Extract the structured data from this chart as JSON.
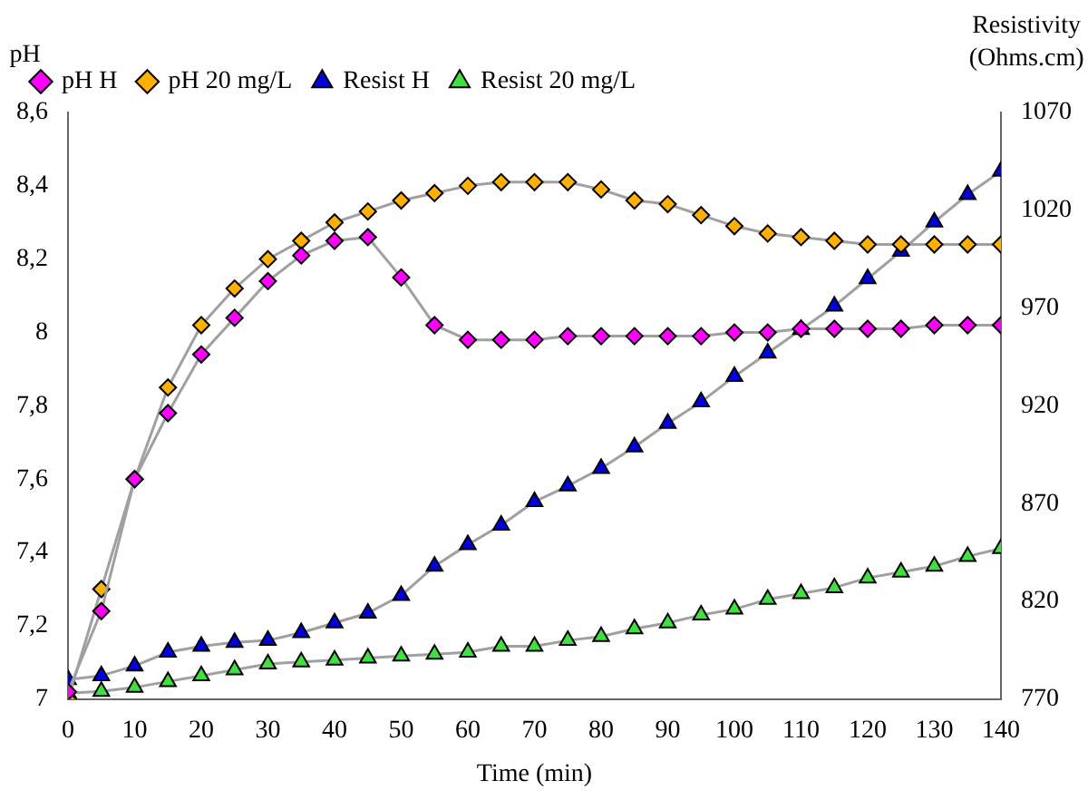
{
  "chart_data": {
    "type": "line",
    "xlabel": "Time (min)",
    "ylabel": "pH",
    "y2label": "Resistivity (Ohms.cm)",
    "x": [
      0,
      5,
      10,
      15,
      20,
      25,
      30,
      35,
      40,
      45,
      50,
      55,
      60,
      65,
      70,
      75,
      80,
      85,
      90,
      95,
      100,
      105,
      110,
      115,
      120,
      125,
      130,
      135,
      140
    ],
    "xlim": [
      0,
      140
    ],
    "xticks": [
      0,
      10,
      20,
      30,
      40,
      50,
      60,
      70,
      80,
      90,
      100,
      110,
      120,
      130,
      140
    ],
    "ylim": [
      7,
      8.6
    ],
    "yticks": [
      7,
      {
        "value": 7.2,
        "label": "7,2"
      },
      {
        "value": 7.4,
        "label": "7,4"
      },
      {
        "value": 7.6,
        "label": "7,6"
      },
      {
        "value": 7.8,
        "label": "7,8"
      },
      8,
      {
        "value": 8.2,
        "label": "8,2"
      },
      {
        "value": 8.4,
        "label": "8,4"
      },
      {
        "value": 8.6,
        "label": "8,6"
      }
    ],
    "y2lim": [
      770,
      1070
    ],
    "y2ticks": [
      770,
      820,
      870,
      920,
      970,
      1020,
      1070
    ],
    "grid": false,
    "legend": "top left",
    "series": [
      {
        "name": "pH H",
        "color": "#ff00ff",
        "marker": "diamond",
        "values": [
          7.02,
          7.24,
          7.6,
          7.78,
          7.94,
          8.04,
          8.14,
          8.21,
          8.25,
          8.26,
          8.15,
          8.02,
          7.98,
          7.98,
          7.98,
          7.99,
          7.99,
          7.99,
          7.99,
          7.99,
          8.0,
          8.0,
          8.01,
          8.01,
          8.01,
          8.01,
          8.02,
          8.02,
          8.02
        ]
      },
      {
        "name": "pH 20 mg/L",
        "color": "#ffb000",
        "marker": "diamond",
        "values": [
          7.0,
          7.3,
          7.6,
          7.85,
          8.02,
          8.12,
          8.2,
          8.25,
          8.3,
          8.33,
          8.36,
          8.38,
          8.4,
          8.41,
          8.41,
          8.41,
          8.39,
          8.36,
          8.35,
          8.32,
          8.29,
          8.27,
          8.26,
          8.25,
          8.24,
          8.24,
          8.24,
          8.24,
          8.24
        ]
      },
      {
        "name": "Resist H",
        "color": "#0000e0",
        "marker": "triangle",
        "axis": "y2",
        "values": [
          780,
          782,
          787,
          794,
          797,
          799,
          800,
          804,
          809,
          814,
          823,
          838,
          849,
          859,
          871,
          879,
          888,
          899,
          911,
          922,
          935,
          947,
          959,
          971,
          985,
          999,
          1014,
          1028,
          1040
        ]
      },
      {
        "name": "Resist 20 mg/L",
        "color": "#40e040",
        "marker": "triangle",
        "axis": "y2",
        "values": [
          773,
          774,
          776,
          779,
          782,
          785,
          788,
          789,
          790,
          791,
          792,
          793,
          794,
          797,
          797,
          800,
          802,
          806,
          809,
          813,
          816,
          821,
          824,
          827,
          832,
          835,
          838,
          843,
          847
        ]
      }
    ]
  }
}
